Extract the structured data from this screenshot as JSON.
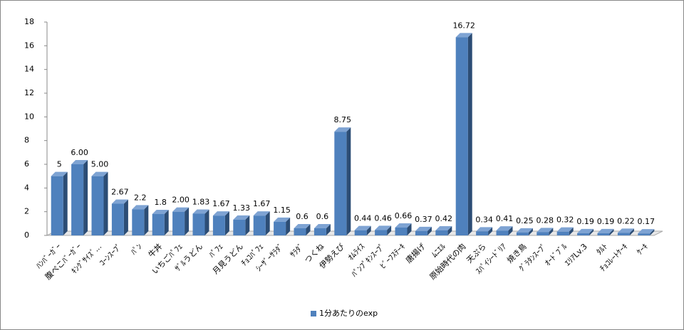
{
  "chart_data": {
    "type": "bar",
    "categories": [
      "ﾊﾝﾊﾞｰｶﾞｰ",
      "腹ぺこﾊﾞｰｶﾞｰ",
      "ｷﾝｸﾞｻｲｽﾞ...",
      "ｺｰﾝｽｰﾌﾟ",
      "ﾊﾟﾝ",
      "牛丼",
      "いちごﾊﾟﾌｪ",
      "ｻﾞﾙうどん",
      "ﾊﾟﾌｪ",
      "月見うどん",
      "ﾁｮｺﾊﾟﾌｪ",
      "ｼｰｻﾞｰｻﾗﾀﾞ",
      "ｻﾗﾀﾞ",
      "つくね",
      "伊勢えび",
      "ｵﾑﾗｲｽ",
      "ﾊﾟﾝﾌﾟｷﾝｽｰﾌﾟ",
      "ﾋﾞｰﾌｽﾃｰｷ",
      "唐揚げ",
      "ﾑﾆｴﾙ",
      "原始時代の肉",
      "天ぷら",
      "ｽﾊﾟｲｼｰﾄﾞﾘｱ",
      "焼き鳥",
      "ｸﾞﾗﾀﾝｽｰﾌﾟ",
      "ｵｰﾄﾞﾌﾞﾙ",
      "ｴﾘｱLv.3",
      "ﾀﾙﾄ",
      "ﾁｮｺﾚｰﾄｹｰｷ",
      "ｹｰｷ"
    ],
    "series": [
      {
        "name": "1分あたりのexp",
        "color": "#4f81bd",
        "values": [
          5,
          6,
          5,
          2.67,
          2.2,
          1.8,
          2,
          1.83,
          1.67,
          1.33,
          1.67,
          1.15,
          0.6,
          0.6,
          8.75,
          0.44,
          0.46,
          0.66,
          0.37,
          0.42,
          16.72,
          0.34,
          0.41,
          0.25,
          0.28,
          0.32,
          0.19,
          0.19,
          0.22,
          0.17
        ],
        "value_labels": [
          "5",
          "6.00",
          "5.00",
          "2.67",
          "2.2",
          "1.8",
          "2.00",
          "1.83",
          "1.67",
          "1.33",
          "1.67",
          "1.15",
          "0.6",
          "0.6",
          "8.75",
          "0.44",
          "0.46",
          "0.66",
          "0.37",
          "0.42",
          "16.72",
          "0.34",
          "0.41",
          "0.25",
          "0.28",
          "0.32",
          "0.19",
          "0.19",
          "0.22",
          "0.17"
        ]
      }
    ],
    "ylim": [
      0,
      18
    ],
    "yticks": [
      0,
      2,
      4,
      6,
      8,
      10,
      12,
      14,
      16,
      18
    ],
    "legend": "bottom"
  }
}
